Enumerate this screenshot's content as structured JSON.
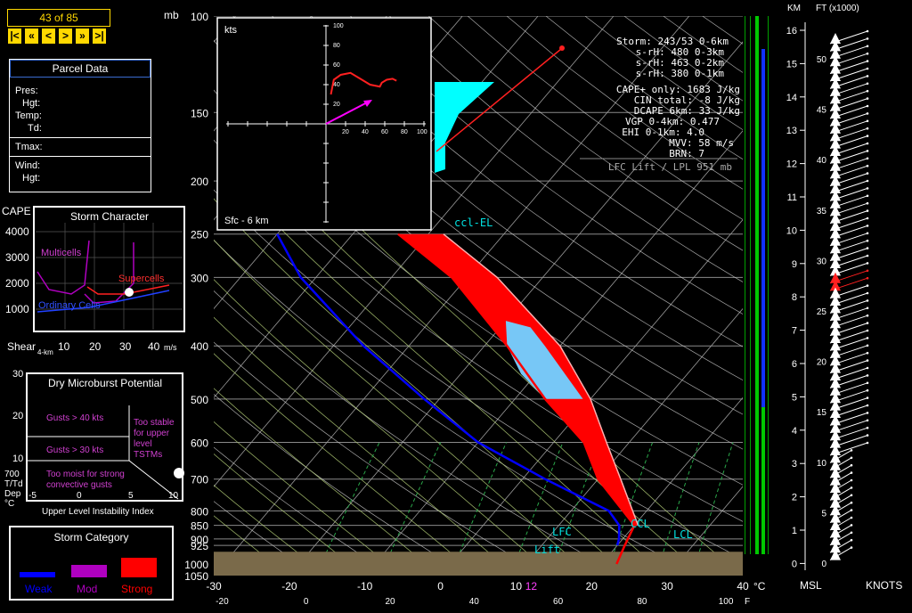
{
  "frame": {
    "counter": "43 of 85",
    "nav": [
      "|<",
      "«",
      "<",
      ">",
      "»",
      ">|"
    ]
  },
  "parcel": {
    "title": "Parcel Data",
    "labels": [
      "Pres:",
      "Hgt:",
      "Temp:",
      "Td:",
      "Tmax:",
      "Wind:",
      "Hgt:"
    ]
  },
  "indices": {
    "storm": "Storm: 243/53 0-6km",
    "srh": [
      "s-rH:  480  0-3km",
      "s-rH:  463  0-2km",
      "s-rH:  380  0-1km"
    ],
    "params": [
      "CAPE+ only: 1683 J/kg",
      "CIN total:   -8 J/kg",
      "DCAPE 6km:   33 J/kg",
      "VGP 0-4km:  0.477",
      "EHI 0-1km:   4.0",
      "MVV:   58 m/s",
      "BRN:    7"
    ],
    "lift": "LFC Lift / LPL 951 mb"
  },
  "storm_character": {
    "title": "Storm Character",
    "cape_label": "CAPE",
    "yticks": [
      "4000",
      "3000",
      "2000",
      "1000"
    ],
    "xticks": [
      "10",
      "20",
      "30",
      "40"
    ],
    "xlabel": "Shear",
    "xlabel_sub": "4-km",
    "xunit": "m/s",
    "regions": [
      "Multicells",
      "Supercells",
      "Ordinary Cells"
    ],
    "point": {
      "shear": 31,
      "cape": 1683
    }
  },
  "microburst": {
    "title": "Dry Microburst Potential",
    "yticks": [
      "30",
      "20",
      "10"
    ],
    "xticks": [
      "-5",
      "0",
      "5",
      "10"
    ],
    "ylabel": [
      "700",
      "T/Td",
      "Dep",
      "°C"
    ],
    "xlabel": "Upper Level Instability Index",
    "text": [
      "Gusts > 40 kts",
      "Gusts > 30 kts",
      "Too moist for strong",
      "convective gusts",
      "Too stable",
      "for upper",
      "level",
      "TSTMs"
    ]
  },
  "storm_category": {
    "title": "Storm Category",
    "items": [
      {
        "label": "Weak",
        "color": "#0000ff"
      },
      {
        "label": "Mod",
        "color": "#b000c0"
      },
      {
        "label": "Strong",
        "color": "#ff0000"
      }
    ]
  },
  "hodograph": {
    "unit": "kts",
    "layer": "Sfc - 6 km",
    "ticks": [
      "20",
      "40",
      "60",
      "80",
      "100"
    ],
    "yticks": [
      "100",
      "80",
      "60",
      "40",
      "20"
    ],
    "points": [
      [
        5,
        30
      ],
      [
        8,
        45
      ],
      [
        15,
        50
      ],
      [
        25,
        52
      ],
      [
        35,
        46
      ],
      [
        45,
        40
      ],
      [
        55,
        38
      ],
      [
        57,
        42
      ],
      [
        62,
        45
      ],
      [
        68,
        46
      ],
      [
        72,
        44
      ]
    ],
    "storm_motion": {
      "dir": 243,
      "spd": 53
    }
  },
  "skewt": {
    "pressure_unit": "mb",
    "pressure_labels": [
      "100",
      "150",
      "200",
      "250",
      "300",
      "400",
      "500",
      "600",
      "700",
      "800",
      "850",
      "900",
      "925",
      "1000",
      "1050"
    ],
    "temp_labels_c": [
      "-30",
      "-20",
      "-10",
      "0",
      "10",
      "12",
      "20",
      "30",
      "40"
    ],
    "temp_unit_c": "°C",
    "temp_labels_f": [
      "-20",
      "0",
      "20",
      "40",
      "60",
      "80",
      "100"
    ],
    "temp_unit_f": "F",
    "level_labels": [
      "ccl-EL",
      "CCL",
      "LCL",
      "LFC",
      "Lift"
    ],
    "height_unit": "KM",
    "height_unit_ft": "FT (x1000)",
    "km_labels": [
      "16",
      "15",
      "14",
      "13",
      "12",
      "11",
      "10",
      "9",
      "8",
      "7",
      "6",
      "5",
      "4",
      "3",
      "2",
      "1",
      "0"
    ],
    "ft_labels": [
      "50",
      "45",
      "40",
      "35",
      "30",
      "25",
      "20",
      "15",
      "10",
      "5",
      "0"
    ],
    "msl": "MSL",
    "knots": "KNOTS"
  },
  "chart_data": {
    "type": "line",
    "title": "",
    "series": [
      {
        "name": "",
        "color": "#ff0000",
        "values_p_t": [
          [
            1000,
            22
          ],
          [
            925,
            21
          ],
          [
            850,
            20
          ],
          [
            700,
            10
          ],
          [
            600,
            4
          ],
          [
            500,
            -6
          ],
          [
            400,
            -17
          ],
          [
            300,
            -32
          ],
          [
            250,
            -44
          ]
        ]
      },
      {
        "name": "",
        "color": "#0000ff",
        "values_p_t": [
          [
            925,
            20
          ],
          [
            900,
            19.5
          ],
          [
            850,
            18
          ],
          [
            800,
            15
          ],
          [
            700,
            3
          ],
          [
            600,
            -10
          ],
          [
            500,
            -22
          ],
          [
            400,
            -36
          ],
          [
            300,
            -52
          ],
          [
            250,
            -60
          ]
        ]
      }
    ],
    "xlim": [
      -30,
      40
    ],
    "ylim": [
      1050,
      100
    ],
    "colors": {
      "cape": "#ff0000",
      "hail": "#77c7f6",
      "cin": "#00ffff",
      "ground": "#7a6a4a"
    }
  }
}
